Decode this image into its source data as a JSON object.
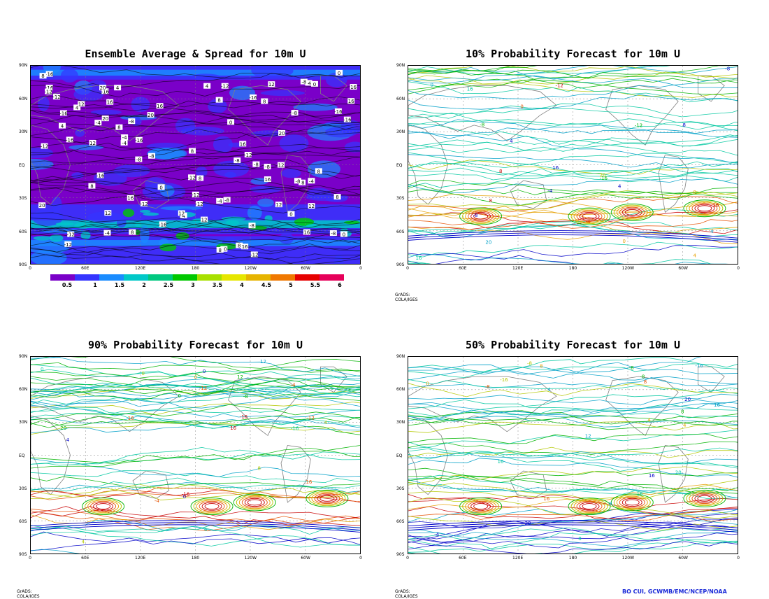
{
  "panels": [
    {
      "title": "Ensemble Average & Spread for 10m U",
      "credit": ""
    },
    {
      "title": "10% Probability Forecast for 10m U",
      "credit": "GrADS: COLA/IGES"
    },
    {
      "title": "90% Probability Forecast for 10m U",
      "credit": "GrADS: COLA/IGES"
    },
    {
      "title": "50% Probability Forecast for 10m U",
      "credit": "GrADS: COLA/IGES"
    }
  ],
  "lat_labels": [
    "90N",
    "60N",
    "30N",
    "EQ",
    "30S",
    "60S",
    "90S"
  ],
  "lon_labels": [
    "0",
    "60E",
    "120E",
    "180",
    "120W",
    "60W",
    "0"
  ],
  "colorbar": {
    "labels": [
      "0.5",
      "1",
      "1.5",
      "2",
      "2.5",
      "3",
      "3.5",
      "4",
      "4.5",
      "5",
      "5.5",
      "6"
    ],
    "colors": [
      "#7a00c8",
      "#3535ff",
      "#1a8cff",
      "#00c8c8",
      "#00c880",
      "#00c800",
      "#a8e000",
      "#e6e600",
      "#e6b400",
      "#f07800",
      "#e60000",
      "#e6005a"
    ]
  },
  "footer": "BO CUI, GCWMB/EMC/NCEP/NOAA",
  "contour_colors": [
    "#0000c8",
    "#00a0c8",
    "#00c8a0",
    "#00b400",
    "#b4c800",
    "#e6a000",
    "#e65000",
    "#c80000"
  ],
  "contour_labels": [
    "-4",
    "0",
    "4",
    "8",
    "12",
    "16",
    "-12",
    "-16",
    "-8",
    "20"
  ]
}
